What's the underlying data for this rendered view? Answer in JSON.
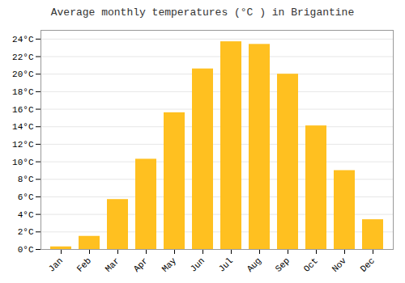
{
  "chart_data": {
    "type": "bar",
    "title": "Average monthly temperatures (°C ) in Brigantine",
    "categories": [
      "Jan",
      "Feb",
      "Mar",
      "Apr",
      "May",
      "Jun",
      "Jul",
      "Aug",
      "Sep",
      "Oct",
      "Nov",
      "Dec"
    ],
    "values": [
      0.3,
      1.5,
      5.7,
      10.3,
      15.6,
      20.6,
      23.7,
      23.4,
      20.0,
      14.1,
      9.0,
      3.4
    ],
    "color": "#FFC020",
    "ylim": [
      0,
      25
    ],
    "yticks": [
      {
        "value": 0,
        "label": "0°C"
      },
      {
        "value": 2,
        "label": "2°C"
      },
      {
        "value": 4,
        "label": "4°C"
      },
      {
        "value": 6,
        "label": "6°C"
      },
      {
        "value": 8,
        "label": "8°C"
      },
      {
        "value": 10,
        "label": "10°C"
      },
      {
        "value": 12,
        "label": "12°C"
      },
      {
        "value": 14,
        "label": "14°C"
      },
      {
        "value": 16,
        "label": "16°C"
      },
      {
        "value": 18,
        "label": "18°C"
      },
      {
        "value": 20,
        "label": "20°C"
      },
      {
        "value": 22,
        "label": "22°C"
      },
      {
        "value": 24,
        "label": "24°C"
      }
    ],
    "grid": true
  }
}
